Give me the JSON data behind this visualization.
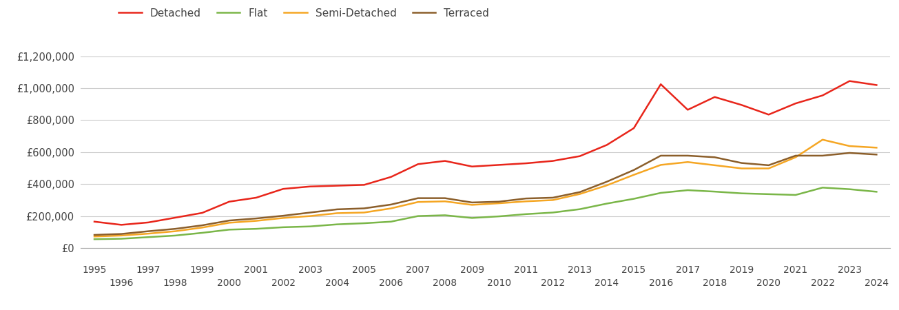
{
  "years": [
    1995,
    1996,
    1997,
    1998,
    1999,
    2000,
    2001,
    2002,
    2003,
    2004,
    2005,
    2006,
    2007,
    2008,
    2009,
    2010,
    2011,
    2012,
    2013,
    2014,
    2015,
    2016,
    2017,
    2018,
    2019,
    2020,
    2021,
    2022,
    2023,
    2024
  ],
  "detached": [
    165000,
    145000,
    160000,
    190000,
    220000,
    290000,
    315000,
    370000,
    385000,
    390000,
    395000,
    445000,
    525000,
    545000,
    510000,
    520000,
    530000,
    545000,
    575000,
    645000,
    750000,
    1025000,
    865000,
    945000,
    895000,
    835000,
    905000,
    955000,
    1045000,
    1020000
  ],
  "flat": [
    55000,
    58000,
    68000,
    78000,
    95000,
    115000,
    120000,
    130000,
    135000,
    148000,
    155000,
    165000,
    200000,
    205000,
    188000,
    198000,
    212000,
    222000,
    243000,
    278000,
    308000,
    345000,
    362000,
    353000,
    342000,
    337000,
    332000,
    378000,
    368000,
    352000
  ],
  "semi_detached": [
    72000,
    78000,
    90000,
    105000,
    128000,
    158000,
    170000,
    188000,
    200000,
    218000,
    222000,
    248000,
    288000,
    292000,
    270000,
    280000,
    292000,
    300000,
    338000,
    392000,
    458000,
    520000,
    538000,
    518000,
    498000,
    498000,
    568000,
    678000,
    638000,
    628000
  ],
  "terraced": [
    82000,
    88000,
    105000,
    120000,
    142000,
    172000,
    185000,
    202000,
    222000,
    242000,
    248000,
    272000,
    312000,
    312000,
    285000,
    290000,
    310000,
    315000,
    350000,
    415000,
    488000,
    578000,
    578000,
    568000,
    532000,
    518000,
    578000,
    578000,
    595000,
    585000
  ],
  "colors": {
    "detached": "#e8251a",
    "flat": "#7ab648",
    "semi_detached": "#f5a623",
    "terraced": "#8B5E2A"
  },
  "ylim": [
    0,
    1300000
  ],
  "yticks": [
    0,
    200000,
    400000,
    600000,
    800000,
    1000000,
    1200000
  ],
  "ytick_labels": [
    "£0",
    "£200,000",
    "£400,000",
    "£600,000",
    "£800,000",
    "£1,000,000",
    "£1,200,000"
  ],
  "background_color": "#ffffff",
  "grid_color": "#cccccc",
  "legend_labels": [
    "Detached",
    "Flat",
    "Semi-Detached",
    "Terraced"
  ],
  "xlim": [
    1994.5,
    2024.5
  ]
}
